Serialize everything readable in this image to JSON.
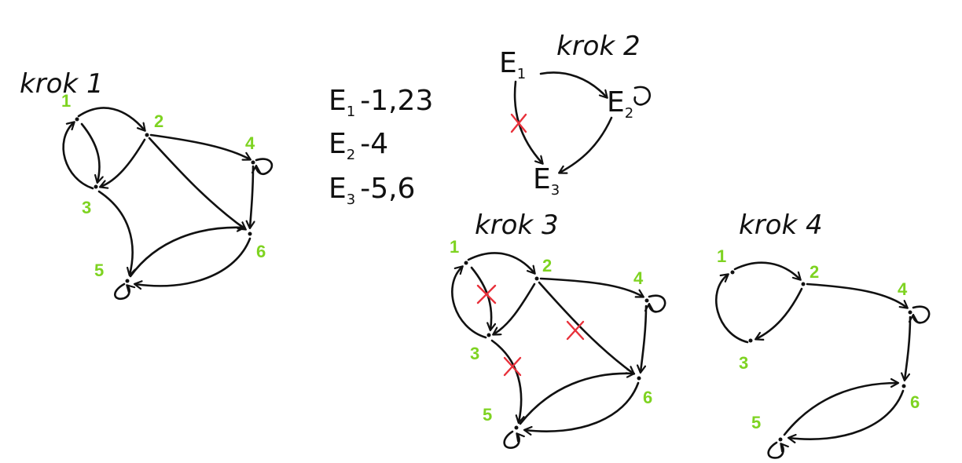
{
  "colors": {
    "ink": "#111111",
    "node_label": "#7ed321",
    "cross": "#e8303a"
  },
  "steps": {
    "step1": {
      "title": "krok 1",
      "labels": {
        "n1": "1",
        "n2": "2",
        "n3": "3",
        "n4": "4",
        "n5": "5",
        "n6": "6"
      }
    },
    "step2": {
      "title": "krok 2",
      "nodes": {
        "e1": "E",
        "e1_sub": "1",
        "e2": "E",
        "e2_sub": "2",
        "e3": "E",
        "e3_sub": "3"
      }
    },
    "step3": {
      "title": "krok 3",
      "labels": {
        "n1": "1",
        "n2": "2",
        "n3": "3",
        "n4": "4",
        "n5": "5",
        "n6": "6"
      }
    },
    "step4": {
      "title": "krok 4",
      "labels": {
        "n1": "1",
        "n2": "2",
        "n3": "3",
        "n4": "4",
        "n5": "5",
        "n6": "6"
      }
    }
  },
  "components": [
    {
      "name": "E",
      "sub": "1",
      "members": "-1,23"
    },
    {
      "name": "E",
      "sub": "2",
      "members": "-4"
    },
    {
      "name": "E",
      "sub": "3",
      "members": "-5,6"
    }
  ]
}
